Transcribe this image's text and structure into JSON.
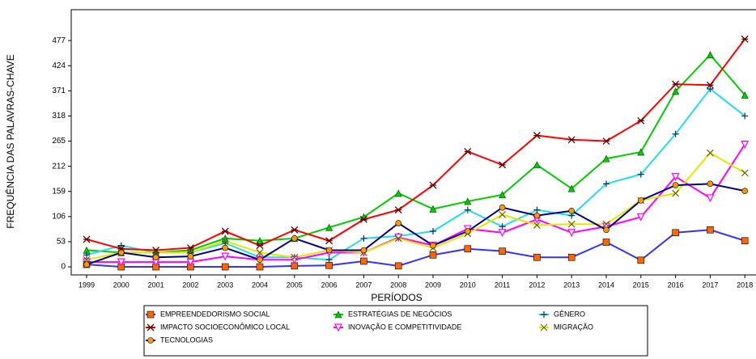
{
  "chart_data": {
    "type": "line",
    "ylabel": "FREQUÊNCIA DAS PALAVRAS-CHAVE",
    "xlabel": "PERÍODOS",
    "categories": [
      "1999",
      "2000",
      "2001",
      "2002",
      "2003",
      "2004",
      "2005",
      "2006",
      "2007",
      "2008",
      "2009",
      "2010",
      "2011",
      "2012",
      "2013",
      "2014",
      "2015",
      "2016",
      "2017",
      "2018"
    ],
    "ylim": [
      -17,
      542
    ],
    "yticks": [
      0,
      53,
      106,
      159,
      212,
      265,
      318,
      371,
      424,
      477
    ],
    "series": [
      {
        "name": "EMPREENDEDORISMO SOCIAL",
        "color": "#3333ff",
        "marker": "square",
        "marker_color": "#ff6600",
        "values": [
          5,
          0,
          0,
          0,
          0,
          0,
          2,
          3,
          12,
          2,
          25,
          38,
          33,
          20,
          20,
          52,
          14,
          72,
          78,
          55
        ]
      },
      {
        "name": "ESTRATÉGIAS DE NEGÓCIOS",
        "color": "#00cc00",
        "marker": "triangle",
        "marker_color": "#00cc00",
        "values": [
          35,
          30,
          30,
          35,
          60,
          55,
          60,
          83,
          105,
          155,
          122,
          138,
          152,
          215,
          165,
          228,
          242,
          370,
          447,
          362
        ]
      },
      {
        "name": "GÊNERO",
        "color": "#22dde8",
        "marker": "plus",
        "marker_color": "#003366",
        "values": [
          25,
          45,
          30,
          30,
          50,
          20,
          20,
          15,
          60,
          65,
          75,
          120,
          85,
          120,
          108,
          175,
          195,
          280,
          375,
          318
        ]
      },
      {
        "name": "IMPACTO SOCIOECONÔMICO LOCAL",
        "color": "#ff0000",
        "marker": "star",
        "marker_color": "#660000",
        "values": [
          58,
          38,
          35,
          40,
          75,
          45,
          78,
          55,
          100,
          120,
          172,
          243,
          215,
          277,
          268,
          265,
          308,
          385,
          383,
          480
        ]
      },
      {
        "name": "INOVAÇÃO E COMPETITIVIDADE",
        "color": "#ff00ff",
        "marker": "tri-down",
        "marker_color": "#ff00ff",
        "values": [
          10,
          10,
          10,
          10,
          22,
          15,
          15,
          30,
          30,
          62,
          45,
          80,
          72,
          100,
          72,
          85,
          105,
          190,
          145,
          258
        ]
      },
      {
        "name": "MIGRAÇÃO",
        "color": "#e6e600",
        "marker": "x",
        "marker_color": "#666600",
        "values": [
          15,
          30,
          30,
          30,
          55,
          30,
          20,
          35,
          30,
          60,
          40,
          70,
          110,
          88,
          90,
          90,
          140,
          155,
          240,
          198
        ]
      },
      {
        "name": "TECNOLOGIAS",
        "color": "#000080",
        "marker": "circle",
        "marker_color": "#ff9900",
        "values": [
          5,
          30,
          20,
          22,
          40,
          15,
          60,
          35,
          35,
          92,
          45,
          75,
          125,
          108,
          118,
          78,
          140,
          172,
          175,
          160
        ]
      }
    ]
  }
}
